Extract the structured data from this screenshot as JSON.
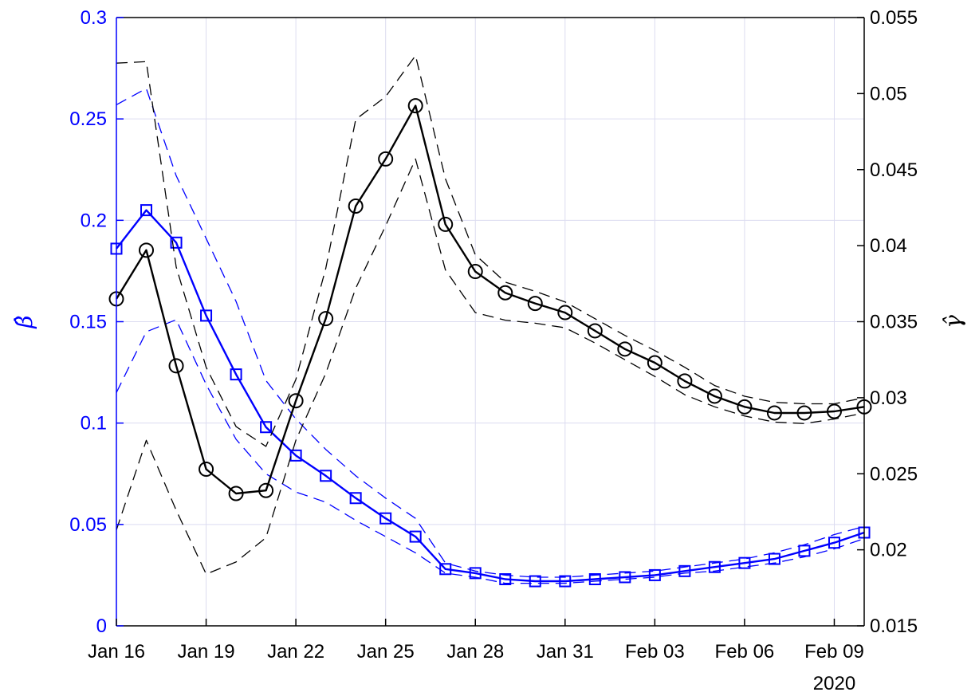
{
  "chart_data": {
    "type": "line",
    "title": "",
    "xlabel": "",
    "x_year_label": "2020",
    "x": [
      "Jan 16",
      "Jan 17",
      "Jan 18",
      "Jan 19",
      "Jan 20",
      "Jan 21",
      "Jan 22",
      "Jan 23",
      "Jan 24",
      "Jan 25",
      "Jan 26",
      "Jan 27",
      "Jan 28",
      "Jan 29",
      "Jan 30",
      "Jan 31",
      "Feb 01",
      "Feb 02",
      "Feb 03",
      "Feb 04",
      "Feb 05",
      "Feb 06",
      "Feb 07",
      "Feb 08",
      "Feb 09",
      "Feb 10"
    ],
    "x_ticks": [
      "Jan 16",
      "Jan 19",
      "Jan 22",
      "Jan 25",
      "Jan 28",
      "Jan 31",
      "Feb 03",
      "Feb 06",
      "Feb 09"
    ],
    "grid": true,
    "left_axis": {
      "label": "β̂",
      "color": "#0000ff",
      "ylim": [
        0,
        0.3
      ],
      "ticks": [
        "0",
        "0.05",
        "0.1",
        "0.15",
        "0.2",
        "0.25",
        "0.3"
      ]
    },
    "right_axis": {
      "label": "γ̂",
      "color": "#000000",
      "ylim": [
        0.015,
        0.055
      ],
      "ticks": [
        "0.015",
        "0.02",
        "0.025",
        "0.03",
        "0.035",
        "0.04",
        "0.045",
        "0.05",
        "0.055"
      ]
    },
    "series": [
      {
        "axis": "left",
        "color": "#0000ff",
        "marker": "square",
        "style": "solid",
        "values": [
          0.186,
          0.205,
          0.189,
          0.153,
          0.124,
          0.098,
          0.084,
          0.074,
          0.063,
          0.053,
          0.044,
          0.028,
          0.026,
          0.023,
          0.022,
          0.022,
          0.023,
          0.024,
          0.025,
          0.027,
          0.029,
          0.031,
          0.033,
          0.037,
          0.041,
          0.046
        ]
      },
      {
        "axis": "left",
        "color": "#0000ff",
        "style": "dashed",
        "values": [
          0.257,
          0.265,
          0.222,
          0.191,
          0.16,
          0.121,
          0.102,
          0.087,
          0.074,
          0.063,
          0.053,
          0.031,
          0.027,
          0.025,
          0.024,
          0.024,
          0.025,
          0.026,
          0.027,
          0.029,
          0.031,
          0.033,
          0.036,
          0.04,
          0.045,
          0.049
        ]
      },
      {
        "axis": "left",
        "color": "#0000ff",
        "style": "dashed",
        "values": [
          0.115,
          0.145,
          0.151,
          0.119,
          0.092,
          0.075,
          0.066,
          0.061,
          0.052,
          0.044,
          0.036,
          0.026,
          0.024,
          0.021,
          0.021,
          0.021,
          0.022,
          0.023,
          0.024,
          0.026,
          0.027,
          0.029,
          0.031,
          0.034,
          0.038,
          0.043
        ]
      },
      {
        "axis": "right",
        "color": "#000000",
        "marker": "circle",
        "style": "solid",
        "values": [
          0.0365,
          0.0397,
          0.0321,
          0.0253,
          0.0237,
          0.0239,
          0.0298,
          0.0352,
          0.0426,
          0.0457,
          0.0492,
          0.0414,
          0.0383,
          0.0369,
          0.0362,
          0.0356,
          0.0344,
          0.0332,
          0.0323,
          0.0311,
          0.0301,
          0.0294,
          0.029,
          0.029,
          0.0291,
          0.0294
        ]
      },
      {
        "axis": "right",
        "color": "#000000",
        "style": "dashed",
        "values": [
          0.052,
          0.0521,
          0.0386,
          0.032,
          0.0281,
          0.0268,
          0.0312,
          0.0385,
          0.0483,
          0.0498,
          0.0525,
          0.0444,
          0.0394,
          0.0376,
          0.037,
          0.0363,
          0.0352,
          0.0341,
          0.0331,
          0.032,
          0.0308,
          0.0301,
          0.0297,
          0.0296,
          0.0296,
          0.03
        ]
      },
      {
        "axis": "right",
        "color": "#000000",
        "style": "dashed",
        "values": [
          0.0213,
          0.0272,
          0.0226,
          0.0184,
          0.0192,
          0.0208,
          0.0272,
          0.0316,
          0.0372,
          0.0413,
          0.0457,
          0.0384,
          0.0356,
          0.0351,
          0.0349,
          0.0346,
          0.0336,
          0.0325,
          0.0314,
          0.0302,
          0.0294,
          0.0288,
          0.0284,
          0.0283,
          0.0286,
          0.029
        ]
      }
    ]
  }
}
